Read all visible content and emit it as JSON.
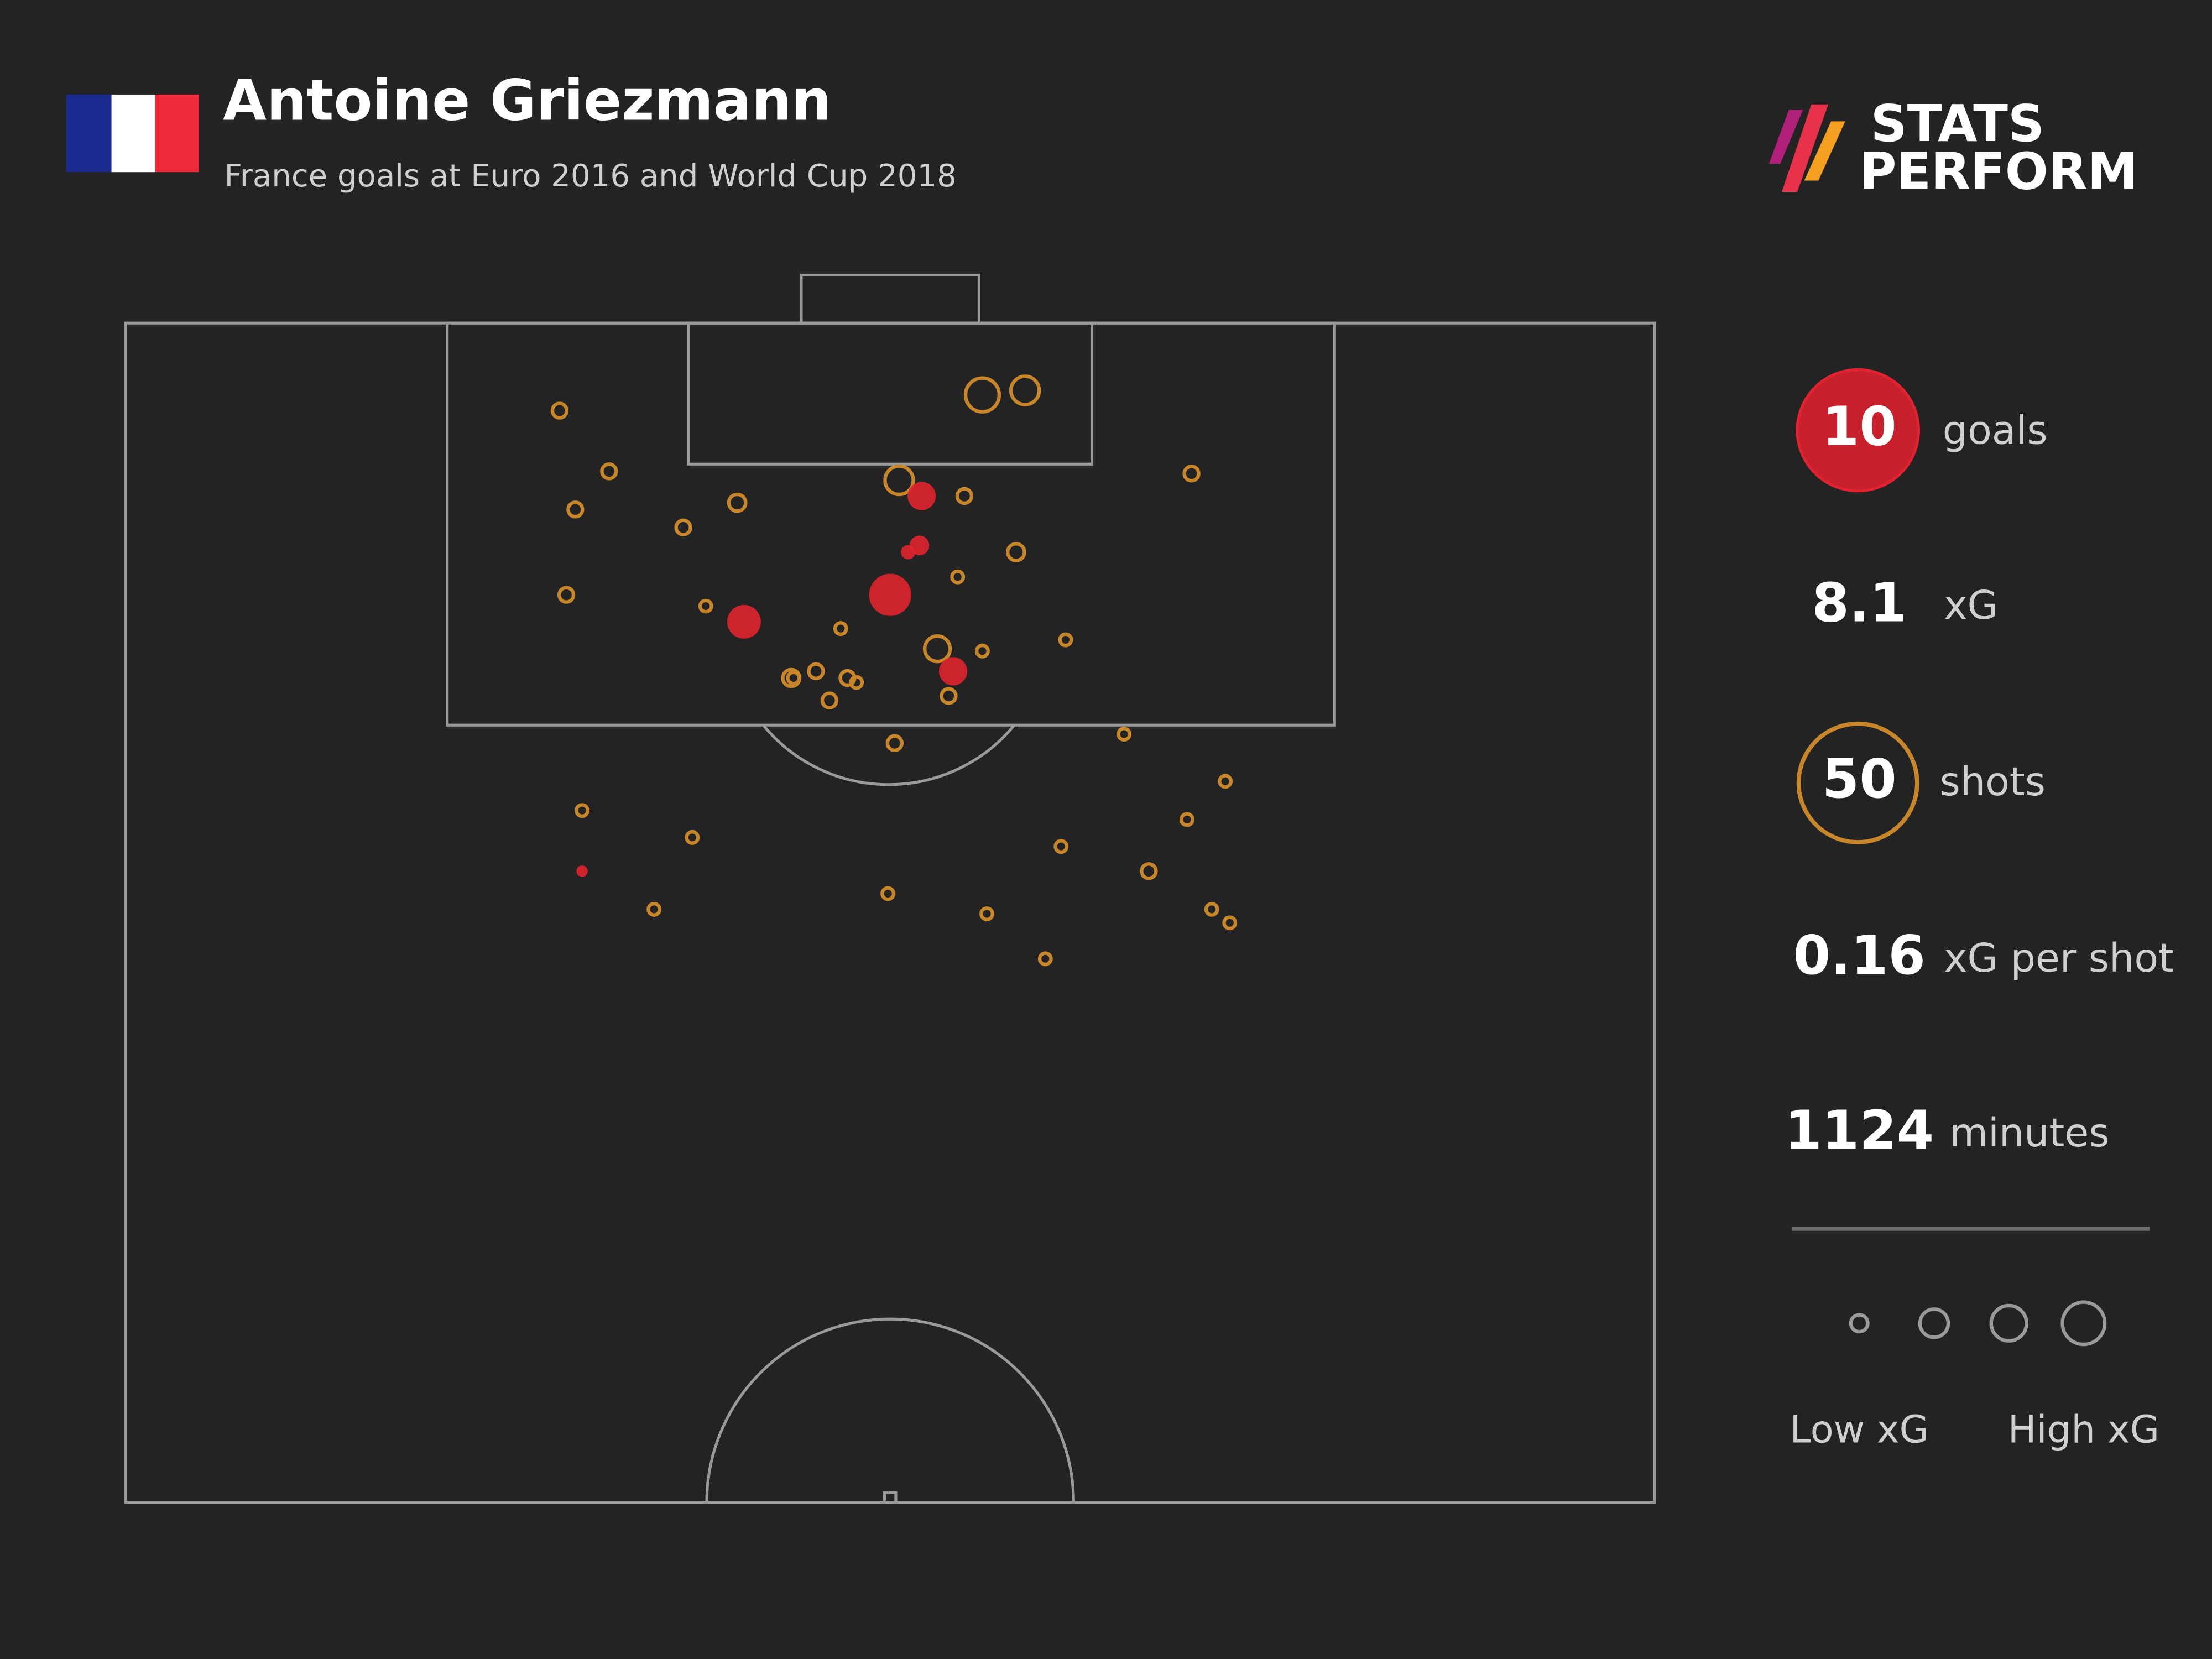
{
  "chart_data": {
    "type": "scatter",
    "title": "Antoine Griezmann",
    "subtitle": "France goals at Euro 2016 and World Cup 2018",
    "xlim": [
      0,
      68
    ],
    "ylim": [
      0,
      52.5
    ],
    "series": [
      {
        "color": "#c8862a",
        "x": [
          19.3,
          21.5,
          20.0,
          27.2,
          24.8,
          19.6,
          25.8,
          34.4,
          37.3,
          38.1,
          40.0,
          39.6,
          37.0,
          47.4,
          31.8,
          36.1,
          38.1,
          41.8,
          29.6,
          30.7,
          32.1,
          32.5,
          31.3,
          36.6,
          34.2,
          44.4,
          48.9,
          20.3,
          25.2,
          47.2,
          41.6,
          45.5,
          33.9,
          23.5,
          38.3,
          48.3,
          49.1,
          40.9,
          29.7
        ],
        "values": [
          3.9,
          6.6,
          8.3,
          8.0,
          9.1,
          12.1,
          12.6,
          7.0,
          7.7,
          3.2,
          3.0,
          10.2,
          11.3,
          6.7,
          13.6,
          14.5,
          14.6,
          14.1,
          15.8,
          15.5,
          15.8,
          16.0,
          16.8,
          16.6,
          18.7,
          18.3,
          20.4,
          21.7,
          22.9,
          22.1,
          23.3,
          24.4,
          25.4,
          26.1,
          26.3,
          26.1,
          26.7,
          28.3,
          15.8
        ],
        "sizes": [
          0.08,
          0.08,
          0.08,
          0.11,
          0.08,
          0.08,
          0.05,
          0.31,
          0.08,
          0.44,
          0.31,
          0.11,
          0.05,
          0.08,
          0.05,
          0.25,
          0.05,
          0.05,
          0.11,
          0.08,
          0.08,
          0.05,
          0.08,
          0.08,
          0.08,
          0.05,
          0.05,
          0.05,
          0.05,
          0.05,
          0.05,
          0.08,
          0.05,
          0.05,
          0.05,
          0.05,
          0.05,
          0.05,
          0.05
        ],
        "filled": false
      },
      {
        "color": "#e0232f",
        "x": [
          35.4,
          35.3,
          34.8,
          34.0,
          27.5,
          36.8,
          20.3
        ],
        "values": [
          7.7,
          9.9,
          10.2,
          12.1,
          13.3,
          15.5,
          24.4
        ],
        "sizes": [
          0.31,
          0.15,
          0.08,
          0.69,
          0.44,
          0.31,
          0.05
        ],
        "filled": true
      }
    ]
  },
  "stats": [
    {
      "value": 10,
      "label": "goals"
    },
    {
      "value": 8.1,
      "label": "xG"
    },
    {
      "value": 50,
      "label": "shots"
    },
    {
      "value": 0.16,
      "label": "xG per shot"
    },
    {
      "value": 1124,
      "label": "minutes"
    }
  ],
  "legend": {
    "low": "Low xG",
    "high": "High xG"
  },
  "brand": [
    "STATS",
    "PERFORM"
  ]
}
